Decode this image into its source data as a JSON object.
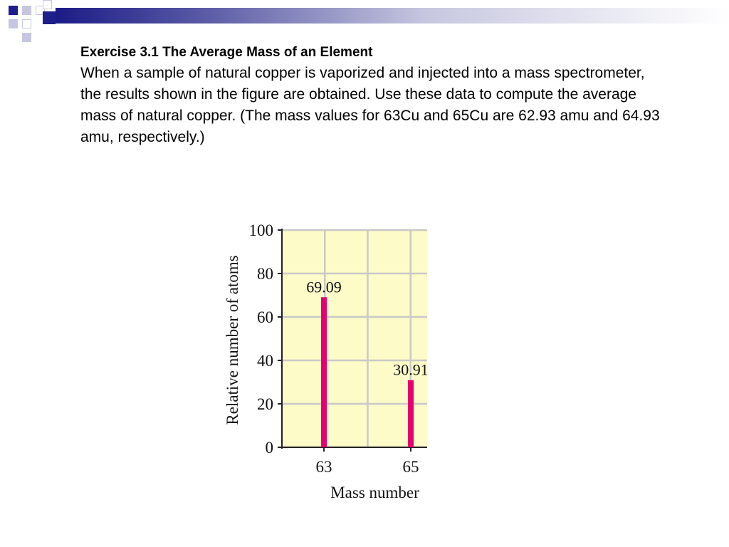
{
  "exercise": {
    "title": "Exercise 3.1 The Average Mass of an Element",
    "body": "When a sample of natural copper is vaporized and injected into a mass spectrometer, the results shown in the figure are obtained. Use these data to compute the average mass of natural copper. (The mass values for 63Cu and 65Cu are 62.93 amu and 64.93 amu, respectively.)"
  },
  "colors": {
    "bar": "#e5006e",
    "plot_bg": "#fdfbc8",
    "grid": "#c9c9c9",
    "header_dark": "#1e1e8c",
    "header_light": "#c6c6e3"
  },
  "chart_data": {
    "type": "bar",
    "categories": [
      "63",
      "65"
    ],
    "values": [
      69.09,
      30.91
    ],
    "data_labels": [
      "69.09",
      "30.91"
    ],
    "xlabel": "Mass number",
    "ylabel": "Relative number of atoms",
    "ylim": [
      0,
      100
    ],
    "yticks": [
      "0",
      "20",
      "40",
      "60",
      "80",
      "100"
    ],
    "grid": true
  }
}
